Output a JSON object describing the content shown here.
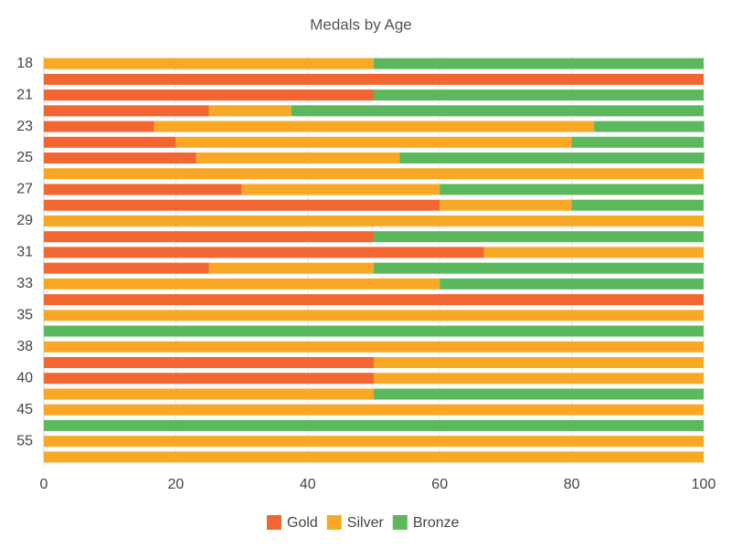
{
  "chart_data": {
    "type": "stacked-bar-horizontal",
    "title": "Medals by Age",
    "categories": [
      "18",
      null,
      "21",
      null,
      "23",
      null,
      "25",
      null,
      "27",
      null,
      "29",
      null,
      "31",
      null,
      "33",
      null,
      "35",
      null,
      "38",
      null,
      "40",
      null,
      "45",
      null,
      "55",
      null
    ],
    "series": [
      {
        "name": "Gold",
        "color": "#f26631",
        "values": [
          0,
          100,
          50,
          25,
          16.7,
          20,
          23.1,
          0,
          30,
          60,
          0,
          50,
          66.7,
          25,
          0,
          100,
          0,
          0,
          0,
          50,
          50,
          0,
          0,
          0,
          0,
          0
        ]
      },
      {
        "name": "Silver",
        "color": "#f9a825",
        "values": [
          50,
          0,
          0,
          12.5,
          66.7,
          60,
          30.8,
          100,
          30,
          20,
          100,
          0,
          33.3,
          25,
          60,
          0,
          100,
          0,
          100,
          50,
          50,
          50,
          100,
          0,
          100,
          100
        ]
      },
      {
        "name": "Bronze",
        "color": "#5cb85c",
        "values": [
          50,
          0,
          50,
          62.5,
          16.7,
          20,
          46.2,
          0,
          40,
          20,
          0,
          50,
          0,
          50,
          40,
          0,
          0,
          100,
          0,
          0,
          0,
          50,
          0,
          100,
          0,
          0
        ]
      }
    ],
    "xlim": [
      0,
      100
    ],
    "xticks": [
      0,
      20,
      40,
      60,
      80,
      100
    ],
    "grid": true,
    "legend": "bottom"
  }
}
